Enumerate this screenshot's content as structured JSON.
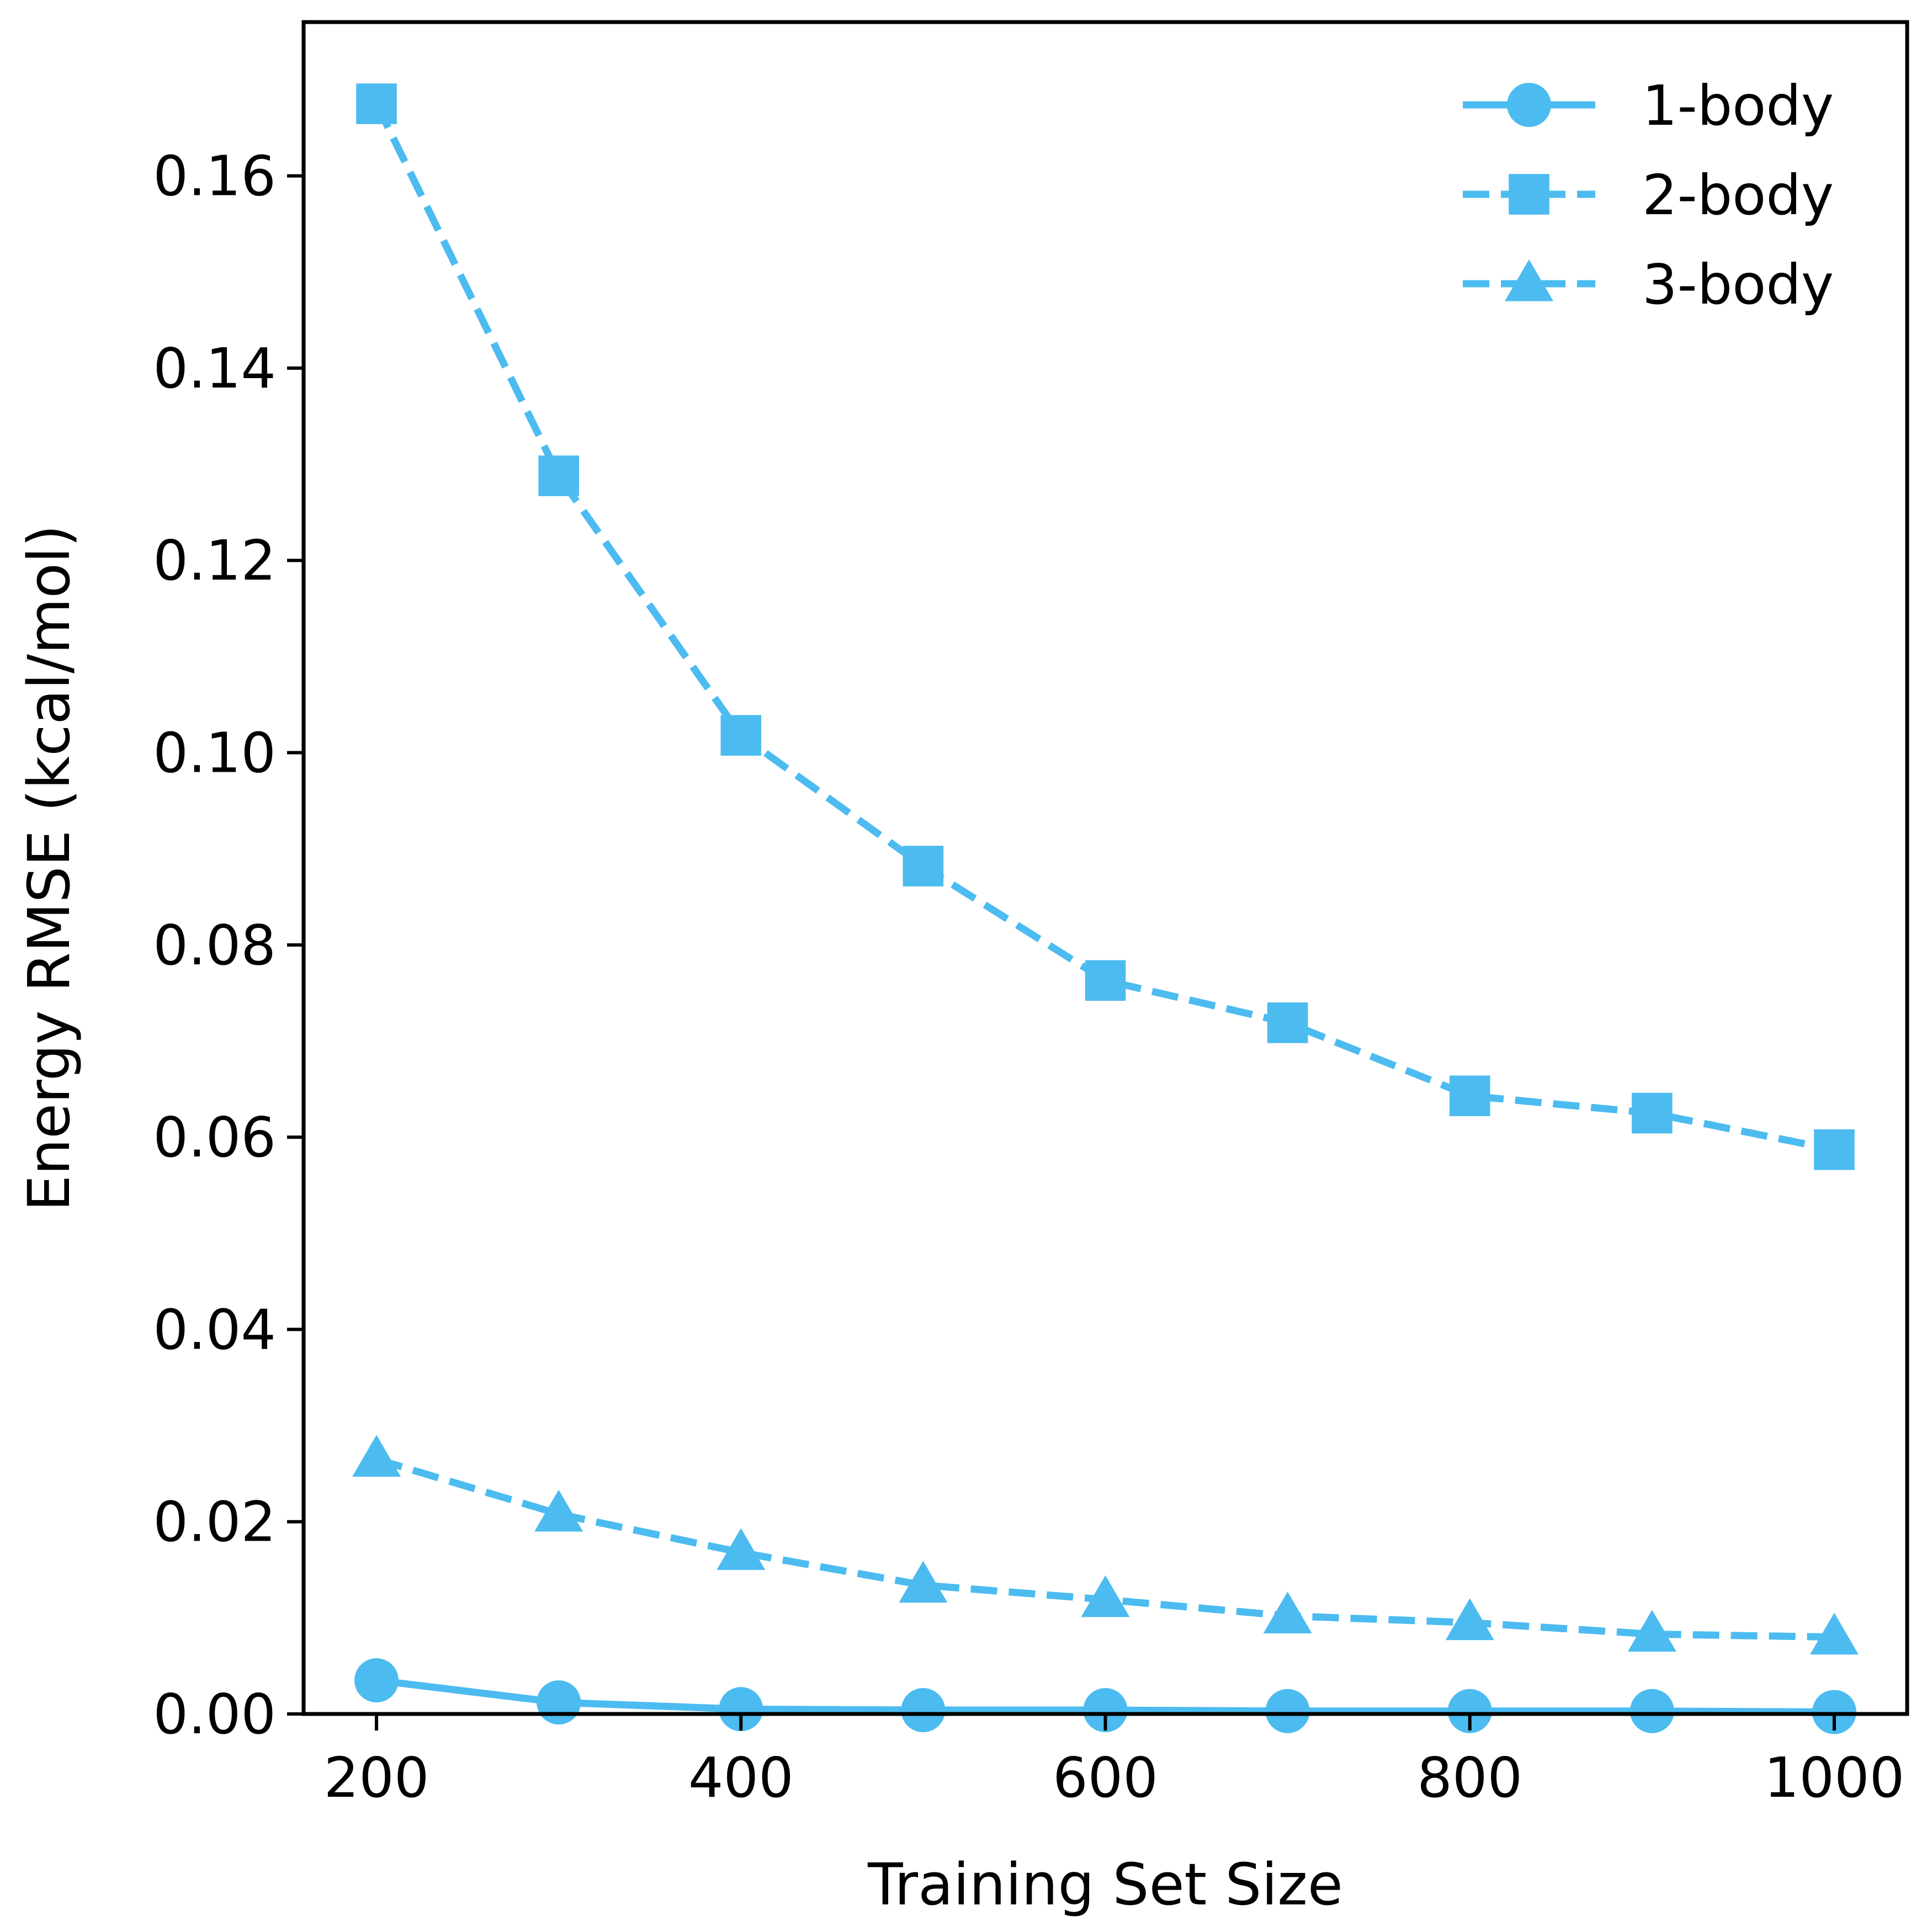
{
  "chart_data": {
    "type": "line",
    "title": "",
    "xlabel": "Training Set Size",
    "ylabel": "Energy RMSE (kcal/mol)",
    "xlim": [
      160,
      1040
    ],
    "ylim": [
      0.0,
      0.176
    ],
    "xticks": [
      {
        "value": 200,
        "label": "200"
      },
      {
        "value": 400,
        "label": "400"
      },
      {
        "value": 600,
        "label": "600"
      },
      {
        "value": 800,
        "label": "800"
      },
      {
        "value": 1000,
        "label": "1000"
      }
    ],
    "yticks": [
      {
        "value": 0.0,
        "label": "0.00"
      },
      {
        "value": 0.02,
        "label": "0.02"
      },
      {
        "value": 0.04,
        "label": "0.04"
      },
      {
        "value": 0.06,
        "label": "0.06"
      },
      {
        "value": 0.08,
        "label": "0.08"
      },
      {
        "value": 0.1,
        "label": "0.10"
      },
      {
        "value": 0.12,
        "label": "0.12"
      },
      {
        "value": 0.14,
        "label": "0.14"
      },
      {
        "value": 0.16,
        "label": "0.16"
      }
    ],
    "grid": false,
    "legend_position": "top-right",
    "color": "#4CBBF0",
    "x": [
      200,
      300,
      400,
      500,
      600,
      700,
      800,
      900,
      1000
    ],
    "series": [
      {
        "name": "1-body",
        "marker": "circle",
        "line_style": "solid",
        "values": [
          0.0035,
          0.0012,
          0.0005,
          0.0004,
          0.0004,
          0.0003,
          0.0003,
          0.0003,
          0.0002
        ]
      },
      {
        "name": "2-body",
        "marker": "square",
        "line_style": "dashed",
        "values": [
          0.1675,
          0.1288,
          0.1018,
          0.0882,
          0.0763,
          0.0719,
          0.0643,
          0.0625,
          0.0587
        ]
      },
      {
        "name": "3-body",
        "marker": "triangle",
        "line_style": "dashed",
        "values": [
          0.0265,
          0.0208,
          0.0168,
          0.0134,
          0.0119,
          0.0102,
          0.0095,
          0.0083,
          0.008
        ]
      }
    ]
  }
}
